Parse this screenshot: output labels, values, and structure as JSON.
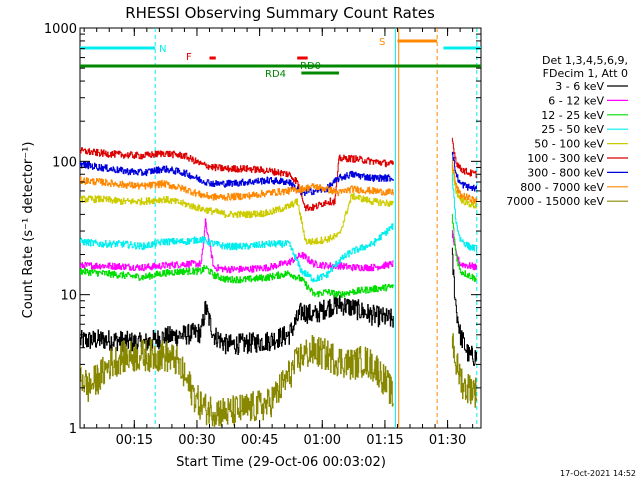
{
  "chart_data": {
    "type": "line",
    "title": "RHESSI Observing Summary Count Rates",
    "xlabel": "Start Time (29-Oct-06 00:03:02)",
    "ylabel": "Count Rate (s⁻¹ detector⁻¹)",
    "yscale": "log",
    "xlim_minutes": [
      5,
      101
    ],
    "ylim": [
      1,
      1000
    ],
    "x_ticks": [
      {
        "minute": 18,
        "label": "00:15"
      },
      {
        "minute": 33,
        "label": "00:30"
      },
      {
        "minute": 48,
        "label": "00:45"
      },
      {
        "minute": 63,
        "label": "01:00"
      },
      {
        "minute": 78,
        "label": "01:15"
      },
      {
        "minute": 93,
        "label": "01:30"
      }
    ],
    "y_ticks": [
      {
        "value": 1,
        "label": "1"
      },
      {
        "value": 10,
        "label": "10"
      },
      {
        "value": 100,
        "label": "100"
      },
      {
        "value": 1000,
        "label": "1000"
      }
    ],
    "legend": {
      "placement": "right",
      "header": [
        "Det 1,3,4,5,6,9,",
        "FDecim 1, Att 0"
      ],
      "entries": [
        {
          "label": "3 - 6 keV",
          "color": "#000000"
        },
        {
          "label": "6 - 12 keV",
          "color": "#ff00ff"
        },
        {
          "label": "12 - 25 keV",
          "color": "#00dd00"
        },
        {
          "label": "25 - 50 keV",
          "color": "#00eeee"
        },
        {
          "label": "50 - 100 keV",
          "color": "#cccc00"
        },
        {
          "label": "100 - 300 keV",
          "color": "#dd0000"
        },
        {
          "label": "300 - 800 keV",
          "color": "#0000dd"
        },
        {
          "label": "800 - 7000 keV",
          "color": "#ff8800"
        },
        {
          "label": "7000 - 15000 keV",
          "color": "#888800"
        }
      ]
    },
    "flags": [
      {
        "label": "N",
        "color": "#00eeee",
        "segments": [
          [
            5,
            23
          ],
          [
            92,
            101
          ]
        ]
      },
      {
        "label": "F",
        "color": "#ee0000",
        "segments": [
          [
            36,
            37.5
          ],
          [
            57,
            59.5
          ]
        ]
      },
      {
        "label": "S",
        "color": "#ff8800",
        "segments": [
          [
            81,
            90.5
          ]
        ]
      },
      {
        "label": "RD0",
        "color": "#008800",
        "segments": [
          [
            5,
            101
          ]
        ]
      },
      {
        "label": "RD4",
        "color": "#008800",
        "segments": [
          [
            58,
            67
          ]
        ]
      }
    ],
    "vertical_markers": [
      {
        "minute": 23,
        "color": "#00eeee",
        "style": "dashed"
      },
      {
        "minute": 80.5,
        "color": "#00eeee",
        "style": "solid"
      },
      {
        "minute": 81.3,
        "color": "#ff8800",
        "style": "solid"
      },
      {
        "minute": 90.5,
        "color": "#ff8800",
        "style": "dashed"
      },
      {
        "minute": 100,
        "color": "#00eeee",
        "style": "dashed"
      }
    ],
    "series": [
      {
        "name": "3 - 6 keV",
        "color": "#000000",
        "x": [
          5,
          10,
          15,
          20,
          25,
          30,
          34,
          35,
          37,
          40,
          45,
          50,
          55,
          58,
          61,
          64,
          67,
          70,
          75,
          80,
          94,
          95,
          96,
          98,
          100
        ],
        "y": [
          4.5,
          4.6,
          4.5,
          4.3,
          4.8,
          5.0,
          5.2,
          8.0,
          5.0,
          4.2,
          4.3,
          4.5,
          5.0,
          7.5,
          7.0,
          8.0,
          8.5,
          8.0,
          7.0,
          6.5,
          20,
          8,
          5,
          3.5,
          3.4
        ]
      },
      {
        "name": "6 - 12 keV",
        "color": "#ff00ff",
        "x": [
          5,
          10,
          15,
          20,
          25,
          30,
          34,
          35,
          37,
          40,
          45,
          50,
          55,
          58,
          61,
          64,
          67,
          70,
          75,
          80,
          94,
          95,
          96,
          98,
          100
        ],
        "y": [
          16.5,
          16.5,
          16.3,
          16.0,
          16.5,
          17.0,
          17.0,
          35.0,
          16.0,
          15.5,
          15.5,
          16.0,
          17.5,
          20.0,
          17.0,
          16.5,
          16.5,
          16.0,
          16.0,
          17.0,
          30,
          20,
          17,
          16.5,
          16
        ]
      },
      {
        "name": "12 - 25 keV",
        "color": "#00dd00",
        "x": [
          5,
          10,
          15,
          20,
          25,
          30,
          34,
          35,
          37,
          40,
          45,
          50,
          55,
          58,
          61,
          64,
          67,
          70,
          75,
          80,
          94,
          95,
          96,
          98,
          100
        ],
        "y": [
          15,
          14.5,
          14,
          13.5,
          14.5,
          15,
          15,
          16,
          14,
          13,
          13,
          13.5,
          14.5,
          13,
          10,
          10.5,
          10,
          10.5,
          11,
          11.5,
          40,
          20,
          15,
          14,
          13
        ]
      },
      {
        "name": "25 - 50 keV",
        "color": "#00eeee",
        "x": [
          5,
          10,
          15,
          20,
          25,
          30,
          34,
          37,
          40,
          45,
          50,
          55,
          58,
          61,
          64,
          67,
          70,
          75,
          80,
          94,
          95,
          96,
          98,
          100
        ],
        "y": [
          25,
          24,
          24,
          23,
          25,
          25,
          26,
          24,
          23,
          23,
          24,
          24,
          15,
          13,
          14,
          18,
          21,
          24,
          33,
          80,
          35,
          26,
          23,
          22
        ]
      },
      {
        "name": "50 - 100 keV",
        "color": "#cccc00",
        "x": [
          5,
          10,
          15,
          20,
          25,
          30,
          34,
          37,
          40,
          45,
          50,
          55,
          57,
          59,
          61,
          64,
          67,
          70,
          75,
          80,
          94,
          95,
          96,
          98,
          100
        ],
        "y": [
          52,
          52,
          50,
          50,
          52,
          48,
          44,
          42,
          40,
          40,
          41,
          46,
          50,
          25,
          25,
          26,
          28,
          55,
          50,
          48,
          90,
          60,
          52,
          48,
          46
        ]
      },
      {
        "name": "100 - 300 keV",
        "color": "#dd0000",
        "x": [
          5,
          10,
          15,
          20,
          25,
          30,
          34,
          37,
          40,
          45,
          50,
          55,
          57,
          59,
          61,
          64,
          66,
          67,
          70,
          75,
          80,
          94,
          95,
          96,
          98,
          100
        ],
        "y": [
          120,
          115,
          112,
          110,
          115,
          110,
          95,
          90,
          88,
          88,
          85,
          80,
          70,
          45,
          45,
          50,
          50,
          105,
          105,
          100,
          95,
          150,
          100,
          88,
          82,
          80
        ]
      },
      {
        "name": "300 - 800 keV",
        "color": "#0000dd",
        "x": [
          5,
          10,
          15,
          20,
          25,
          30,
          34,
          37,
          40,
          45,
          50,
          55,
          58,
          61,
          64,
          67,
          70,
          75,
          80,
          94,
          95,
          96,
          98,
          100
        ],
        "y": [
          95,
          90,
          85,
          82,
          88,
          82,
          72,
          68,
          68,
          70,
          72,
          70,
          58,
          60,
          62,
          75,
          80,
          75,
          75,
          120,
          80,
          68,
          64,
          62
        ]
      },
      {
        "name": "800 - 7000 keV",
        "color": "#ff8800",
        "x": [
          5,
          10,
          15,
          20,
          25,
          30,
          34,
          37,
          40,
          45,
          50,
          55,
          58,
          61,
          64,
          67,
          70,
          75,
          80,
          94,
          95,
          96,
          98,
          100
        ],
        "y": [
          72,
          70,
          67,
          65,
          68,
          62,
          56,
          54,
          54,
          55,
          58,
          60,
          62,
          65,
          62,
          58,
          62,
          60,
          58,
          100,
          65,
          56,
          53,
          50
        ]
      },
      {
        "name": "7000 - 15000 keV",
        "color": "#888800",
        "x": [
          5,
          7,
          10,
          12,
          15,
          20,
          25,
          28,
          30,
          33,
          35,
          40,
          45,
          50,
          52,
          55,
          58,
          61,
          64,
          67,
          70,
          73,
          76,
          79,
          80,
          94,
          95,
          97,
          99,
          100
        ],
        "y": [
          2.5,
          2.0,
          2.5,
          3.0,
          3.4,
          3.5,
          3.5,
          3.2,
          2.4,
          1.6,
          1.4,
          1.3,
          1.4,
          1.5,
          1.8,
          2.5,
          3.5,
          3.8,
          3.5,
          3.2,
          3.0,
          3.2,
          2.8,
          2.0,
          1.6,
          5.0,
          3.0,
          2.0,
          2.0,
          1.8
        ]
      }
    ]
  },
  "footer_timestamp": "17-Oct-2021 14:52"
}
